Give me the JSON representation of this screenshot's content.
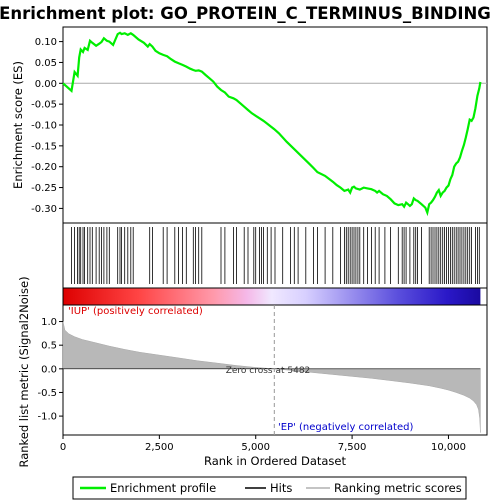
{
  "chart_data": [
    {
      "type": "line",
      "title": "Enrichment plot: GO_PROTEIN_C_TERMINUS_BINDING",
      "ylabel": "Enrichment score (ES)",
      "ylim": [
        -0.335,
        0.135
      ],
      "yticks": [
        0.1,
        0.05,
        0.0,
        -0.05,
        -0.1,
        -0.15,
        -0.2,
        -0.25,
        -0.3
      ],
      "ytick_labels": [
        "0.10",
        "0.05",
        "0.00",
        "-0.05",
        "-0.10",
        "-0.15",
        "-0.20",
        "-0.25",
        "-0.30"
      ],
      "zero_line": true,
      "series": [
        {
          "name": "Enrichment profile",
          "color": "#00ee00",
          "x": [
            0,
            220,
            300,
            380,
            420,
            460,
            520,
            560,
            640,
            700,
            760,
            860,
            940,
            1000,
            1060,
            1140,
            1200,
            1300,
            1420,
            1480,
            1520,
            1600,
            1680,
            1760,
            1820,
            1960,
            2100,
            2200,
            2250,
            2320,
            2400,
            2500,
            2600,
            2700,
            2800,
            2900,
            3000,
            3100,
            3200,
            3300,
            3380,
            3440,
            3520,
            3600,
            3700,
            3800,
            3900,
            4000,
            4100,
            4200,
            4300,
            4420,
            4500,
            4600,
            4700,
            4800,
            4900,
            5000,
            5100,
            5200,
            5300,
            5400,
            5482,
            5600,
            5800,
            6000,
            6200,
            6400,
            6500,
            6600,
            6800,
            7000,
            7100,
            7200,
            7300,
            7400,
            7450,
            7500,
            7550,
            7600,
            7700,
            7800,
            7900,
            8000,
            8100,
            8150,
            8200,
            8300,
            8400,
            8500,
            8600,
            8700,
            8800,
            8850,
            8900,
            8950,
            9000,
            9050,
            9100,
            9150,
            9200,
            9300,
            9400,
            9450,
            9500,
            9550,
            9600,
            9650,
            9700,
            9750,
            9800,
            9850,
            9900,
            9950,
            10000,
            10050,
            10100,
            10150,
            10200,
            10250,
            10300,
            10350,
            10400,
            10450,
            10500,
            10550,
            10600,
            10650,
            10700,
            10750,
            10800,
            10830
          ],
          "y": [
            0.0,
            -0.018,
            0.027,
            0.018,
            0.062,
            0.081,
            0.075,
            0.085,
            0.08,
            0.102,
            0.097,
            0.09,
            0.095,
            0.099,
            0.108,
            0.102,
            0.1,
            0.092,
            0.118,
            0.121,
            0.118,
            0.12,
            0.116,
            0.12,
            0.116,
            0.105,
            0.097,
            0.088,
            0.094,
            0.088,
            0.078,
            0.072,
            0.068,
            0.065,
            0.058,
            0.052,
            0.048,
            0.044,
            0.04,
            0.035,
            0.032,
            0.03,
            0.031,
            0.028,
            0.02,
            0.012,
            0.004,
            -0.008,
            -0.016,
            -0.022,
            -0.032,
            -0.036,
            -0.04,
            -0.048,
            -0.056,
            -0.064,
            -0.072,
            -0.078,
            -0.084,
            -0.09,
            -0.097,
            -0.104,
            -0.11,
            -0.12,
            -0.14,
            -0.158,
            -0.176,
            -0.194,
            -0.203,
            -0.213,
            -0.222,
            -0.236,
            -0.244,
            -0.25,
            -0.258,
            -0.255,
            -0.262,
            -0.25,
            -0.248,
            -0.252,
            -0.255,
            -0.25,
            -0.252,
            -0.254,
            -0.258,
            -0.262,
            -0.258,
            -0.266,
            -0.27,
            -0.278,
            -0.288,
            -0.292,
            -0.29,
            -0.296,
            -0.286,
            -0.29,
            -0.294,
            -0.29,
            -0.276,
            -0.28,
            -0.282,
            -0.29,
            -0.298,
            -0.31,
            -0.29,
            -0.286,
            -0.28,
            -0.272,
            -0.262,
            -0.256,
            -0.27,
            -0.262,
            -0.258,
            -0.25,
            -0.245,
            -0.23,
            -0.22,
            -0.2,
            -0.192,
            -0.188,
            -0.178,
            -0.162,
            -0.148,
            -0.13,
            -0.11,
            -0.087,
            -0.09,
            -0.082,
            -0.06,
            -0.03,
            -0.012,
            0.003
          ]
        }
      ]
    },
    {
      "type": "heatmap",
      "series": [
        {
          "name": "Hits",
          "color": "#000000",
          "x": [
            220,
            300,
            380,
            420,
            460,
            520,
            560,
            640,
            700,
            760,
            860,
            940,
            1000,
            1060,
            1140,
            1200,
            1420,
            1480,
            1520,
            1600,
            1680,
            1760,
            1820,
            2250,
            2320,
            2600,
            2700,
            2900,
            3000,
            3100,
            3200,
            3380,
            3440,
            3520,
            3600,
            4100,
            4200,
            4420,
            4500,
            4700,
            4800,
            4950,
            5000,
            5100,
            5150,
            5200,
            5300,
            5400,
            5500,
            5700,
            5900,
            6000,
            6100,
            6300,
            6500,
            6600,
            6800,
            7000,
            7200,
            7300,
            7350,
            7400,
            7450,
            7500,
            7550,
            7600,
            7650,
            7700,
            7800,
            7900,
            8000,
            8100,
            8200,
            8350,
            8500,
            8700,
            8800,
            8850,
            8900,
            9000,
            9100,
            9150,
            9200,
            9300,
            9500,
            9550,
            9600,
            9650,
            9700,
            9750,
            9800,
            9850,
            9900,
            9950,
            10000,
            10050,
            10100,
            10150,
            10200,
            10250,
            10300,
            10350,
            10400,
            10450,
            10500,
            10550,
            10600,
            10700,
            10750,
            10800
          ]
        }
      ],
      "labels": [
        "'IUP' (positively correlated)",
        "'EP' (negatively correlated)"
      ],
      "colors": [
        "#ff0000",
        "#ffffff",
        "#0000cc"
      ]
    },
    {
      "type": "area",
      "xlabel": "Rank in Ordered Dataset",
      "ylabel": "Ranked list metric (Signal2Noise)",
      "xlim": [
        0,
        11000
      ],
      "ylim": [
        -1.4,
        1.35
      ],
      "xticks": [
        0,
        2500,
        5000,
        7500,
        10000
      ],
      "xtick_labels": [
        "0",
        "2,500",
        "5,000",
        "7,500",
        "10,000"
      ],
      "yticks": [
        1.0,
        0.5,
        0.0,
        -0.5,
        -1.0
      ],
      "ytick_labels": [
        "1.0",
        "0.5",
        "0.0",
        "-0.5",
        "-1.0"
      ],
      "zero_cross_label": "Zero cross at 5482",
      "zero_cross": 5482,
      "series": [
        {
          "name": "Ranking metric scores",
          "color": "#b0b0b0",
          "x": [
            0,
            50,
            150,
            300,
            500,
            800,
            1200,
            1600,
            2000,
            2500,
            3000,
            3500,
            4000,
            4500,
            5000,
            5482,
            6000,
            6500,
            7000,
            7500,
            8000,
            8500,
            9000,
            9500,
            9800,
            10000,
            10200,
            10400,
            10550,
            10650,
            10730,
            10780,
            10810,
            10830
          ],
          "y": [
            1.0,
            0.82,
            0.74,
            0.68,
            0.62,
            0.56,
            0.48,
            0.41,
            0.35,
            0.29,
            0.23,
            0.17,
            0.12,
            0.07,
            0.03,
            0.0,
            -0.04,
            -0.08,
            -0.12,
            -0.16,
            -0.2,
            -0.25,
            -0.3,
            -0.36,
            -0.41,
            -0.45,
            -0.5,
            -0.56,
            -0.62,
            -0.68,
            -0.76,
            -0.86,
            -1.05,
            -1.35
          ]
        }
      ]
    }
  ],
  "legend": {
    "items": [
      "Enrichment profile",
      "Hits",
      "Ranking metric scores"
    ]
  }
}
